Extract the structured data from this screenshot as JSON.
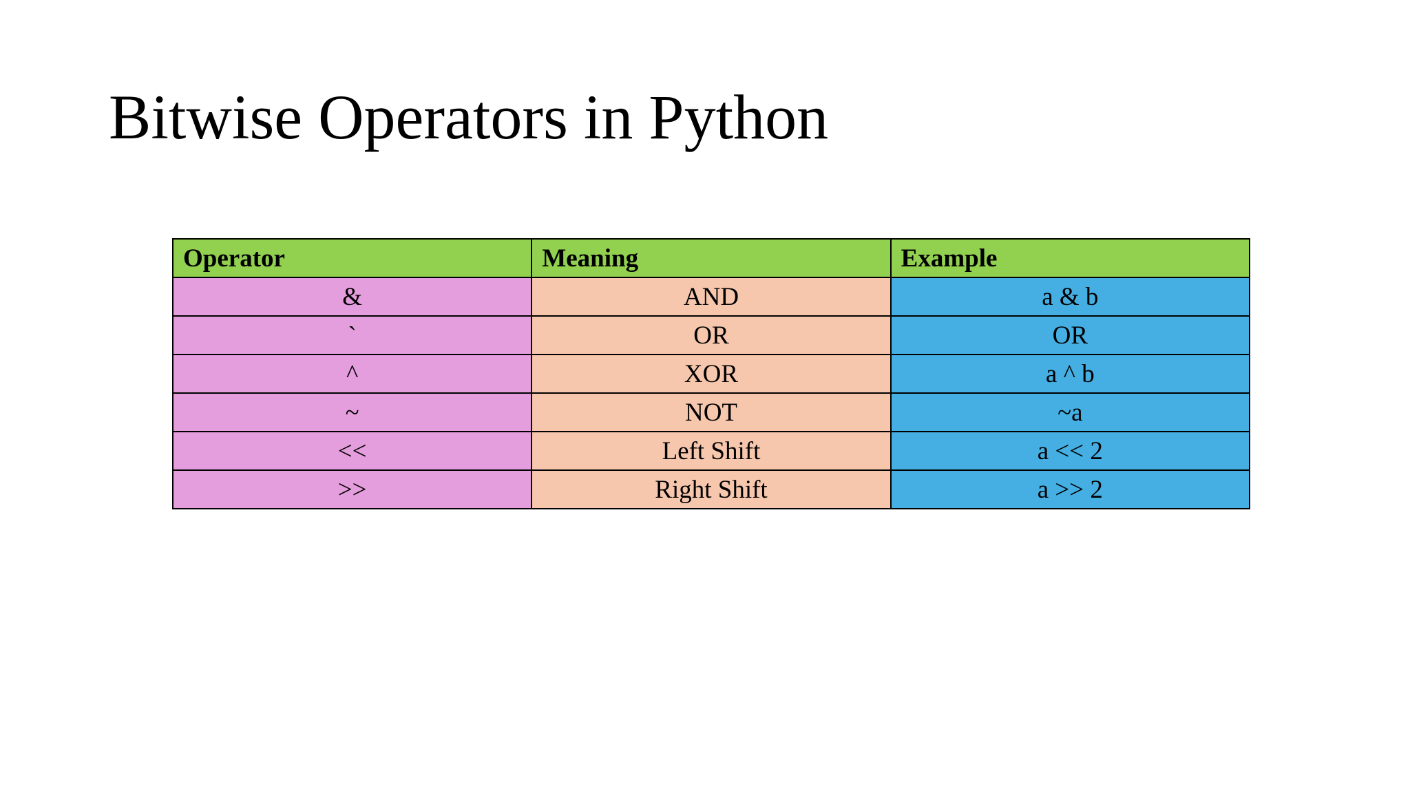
{
  "slide": {
    "title": "Bitwise Operators in Python"
  },
  "table": {
    "headers": {
      "operator": "Operator",
      "meaning": "Meaning",
      "example": "Example"
    },
    "rows": [
      {
        "operator": "&",
        "meaning": "AND",
        "example": "a & b"
      },
      {
        "operator": "`",
        "meaning": "OR",
        "example": "OR"
      },
      {
        "operator": "^",
        "meaning": "XOR",
        "example": "a ^ b"
      },
      {
        "operator": "~",
        "meaning": "NOT",
        "example": "~a"
      },
      {
        "operator": "<<",
        "meaning": "Left Shift",
        "example": "a << 2"
      },
      {
        "operator": ">>",
        "meaning": "Right Shift",
        "example": "a >> 2"
      }
    ]
  },
  "colors": {
    "header_bg": "#92d050",
    "operator_bg": "#e59edd",
    "meaning_bg": "#f6c6ad",
    "example_bg": "#45afe3"
  }
}
